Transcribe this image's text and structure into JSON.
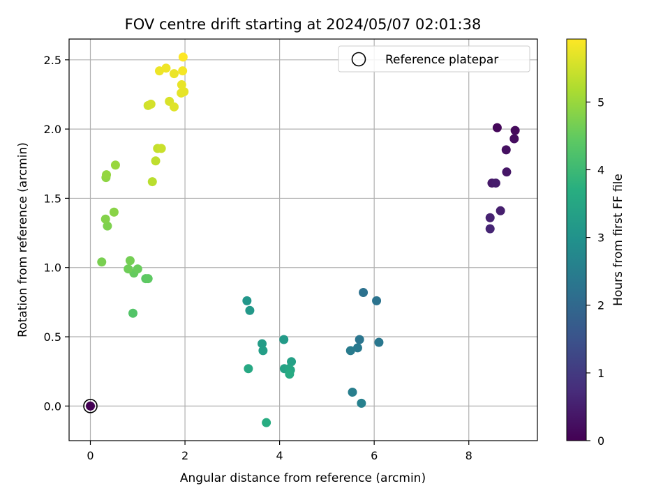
{
  "chart_data": {
    "type": "scatter",
    "title": "FOV centre drift starting at 2024/05/07 02:01:38",
    "xlabel": "Angular distance from reference (arcmin)",
    "ylabel": "Rotation from reference (arcmin)",
    "xlim": [
      -0.45,
      9.45
    ],
    "ylim": [
      -0.25,
      2.65
    ],
    "xticks": [
      0,
      2,
      4,
      6,
      8
    ],
    "yticks": [
      0.0,
      0.5,
      1.0,
      1.5,
      2.0,
      2.5
    ],
    "xtick_labels": [
      "0",
      "2",
      "4",
      "6",
      "8"
    ],
    "ytick_labels": [
      "0.0",
      "0.5",
      "1.0",
      "1.5",
      "2.0",
      "2.5"
    ],
    "grid": true,
    "legend": {
      "position": "top-right",
      "entries": [
        "Reference platepar"
      ]
    },
    "colorbar": {
      "label": "Hours from first FF file",
      "range": [
        0,
        5.93
      ],
      "ticks": [
        0,
        1,
        2,
        3,
        4,
        5
      ],
      "tick_labels": [
        "0",
        "1",
        "2",
        "3",
        "4",
        "5"
      ],
      "colormap": "viridis"
    },
    "reference_point": {
      "x": 0,
      "y": 0
    },
    "points": [
      {
        "x": 0.0,
        "y": 0.0,
        "h": 0.0
      },
      {
        "x": 8.6,
        "y": 2.01,
        "h": 0.1
      },
      {
        "x": 8.98,
        "y": 1.99,
        "h": 0.15
      },
      {
        "x": 8.96,
        "y": 1.93,
        "h": 0.2
      },
      {
        "x": 8.79,
        "y": 1.85,
        "h": 0.25
      },
      {
        "x": 8.8,
        "y": 1.69,
        "h": 0.35
      },
      {
        "x": 8.49,
        "y": 1.61,
        "h": 0.4
      },
      {
        "x": 8.57,
        "y": 1.61,
        "h": 0.45
      },
      {
        "x": 8.67,
        "y": 1.41,
        "h": 0.5
      },
      {
        "x": 8.45,
        "y": 1.36,
        "h": 0.55
      },
      {
        "x": 8.45,
        "y": 1.28,
        "h": 0.6
      },
      {
        "x": 5.77,
        "y": 0.82,
        "h": 2.2
      },
      {
        "x": 6.05,
        "y": 0.76,
        "h": 2.25
      },
      {
        "x": 5.69,
        "y": 0.48,
        "h": 2.3
      },
      {
        "x": 6.1,
        "y": 0.46,
        "h": 2.35
      },
      {
        "x": 5.65,
        "y": 0.42,
        "h": 2.4
      },
      {
        "x": 5.5,
        "y": 0.4,
        "h": 2.45
      },
      {
        "x": 5.54,
        "y": 0.1,
        "h": 2.5
      },
      {
        "x": 5.73,
        "y": 0.02,
        "h": 2.55
      },
      {
        "x": 3.31,
        "y": 0.76,
        "h": 3.1
      },
      {
        "x": 3.37,
        "y": 0.69,
        "h": 3.15
      },
      {
        "x": 4.09,
        "y": 0.48,
        "h": 3.2
      },
      {
        "x": 3.63,
        "y": 0.45,
        "h": 3.25
      },
      {
        "x": 3.65,
        "y": 0.4,
        "h": 3.3
      },
      {
        "x": 4.25,
        "y": 0.32,
        "h": 3.35
      },
      {
        "x": 4.1,
        "y": 0.27,
        "h": 3.4
      },
      {
        "x": 4.2,
        "y": 0.27,
        "h": 3.45
      },
      {
        "x": 4.23,
        "y": 0.26,
        "h": 3.5
      },
      {
        "x": 3.34,
        "y": 0.27,
        "h": 3.55
      },
      {
        "x": 4.21,
        "y": 0.23,
        "h": 3.6
      },
      {
        "x": 3.72,
        "y": -0.12,
        "h": 3.65
      },
      {
        "x": 0.9,
        "y": 0.67,
        "h": 4.3
      },
      {
        "x": 1.17,
        "y": 0.92,
        "h": 4.4
      },
      {
        "x": 1.22,
        "y": 0.92,
        "h": 4.45
      },
      {
        "x": 0.92,
        "y": 0.96,
        "h": 4.5
      },
      {
        "x": 1.0,
        "y": 0.99,
        "h": 4.55
      },
      {
        "x": 0.8,
        "y": 0.99,
        "h": 4.6
      },
      {
        "x": 0.84,
        "y": 1.05,
        "h": 4.65
      },
      {
        "x": 0.24,
        "y": 1.04,
        "h": 4.7
      },
      {
        "x": 0.36,
        "y": 1.3,
        "h": 4.75
      },
      {
        "x": 0.32,
        "y": 1.35,
        "h": 4.8
      },
      {
        "x": 0.5,
        "y": 1.4,
        "h": 4.85
      },
      {
        "x": 0.33,
        "y": 1.65,
        "h": 4.9
      },
      {
        "x": 0.34,
        "y": 1.67,
        "h": 4.95
      },
      {
        "x": 0.53,
        "y": 1.74,
        "h": 5.0
      },
      {
        "x": 1.31,
        "y": 1.62,
        "h": 5.3
      },
      {
        "x": 1.38,
        "y": 1.77,
        "h": 5.35
      },
      {
        "x": 1.42,
        "y": 1.86,
        "h": 5.4
      },
      {
        "x": 1.5,
        "y": 1.86,
        "h": 5.45
      },
      {
        "x": 1.22,
        "y": 2.17,
        "h": 5.5
      },
      {
        "x": 1.28,
        "y": 2.18,
        "h": 5.55
      },
      {
        "x": 1.67,
        "y": 2.2,
        "h": 5.6
      },
      {
        "x": 1.77,
        "y": 2.16,
        "h": 5.65
      },
      {
        "x": 1.92,
        "y": 2.26,
        "h": 5.7
      },
      {
        "x": 1.98,
        "y": 2.27,
        "h": 5.72
      },
      {
        "x": 1.93,
        "y": 2.32,
        "h": 5.74
      },
      {
        "x": 1.77,
        "y": 2.4,
        "h": 5.76
      },
      {
        "x": 1.46,
        "y": 2.42,
        "h": 5.78
      },
      {
        "x": 1.6,
        "y": 2.44,
        "h": 5.8
      },
      {
        "x": 1.95,
        "y": 2.42,
        "h": 5.85
      },
      {
        "x": 1.96,
        "y": 2.52,
        "h": 5.93
      }
    ]
  }
}
